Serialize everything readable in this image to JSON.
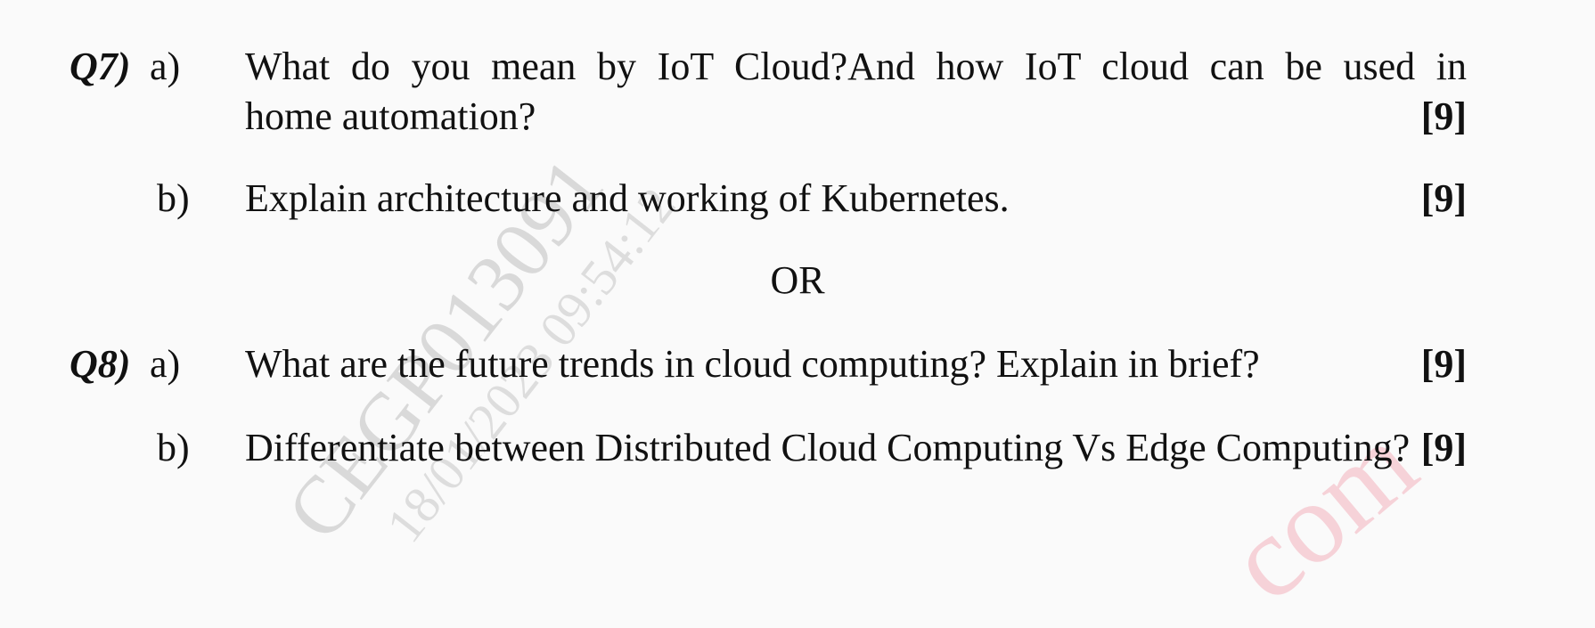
{
  "questions": [
    {
      "number": "Q7)",
      "parts": [
        {
          "letter": "a)",
          "text_lines": [
            "What do you mean by IoT Cloud?And how IoT cloud can be used in",
            "home automation?"
          ],
          "marks": "[9]"
        },
        {
          "letter": "b)",
          "text_lines": [
            "Explain architecture and working of Kubernetes."
          ],
          "marks": "[9]"
        }
      ]
    },
    {
      "number": "Q8)",
      "parts": [
        {
          "letter": "a)",
          "text_lines": [
            "What are the future trends in cloud computing? Explain in brief?"
          ],
          "marks": "[9]"
        },
        {
          "letter": "b)",
          "text_lines": [
            "Differentiate between Distributed Cloud Computing Vs Edge Computing?"
          ],
          "marks": "[9]"
        }
      ]
    }
  ],
  "separator": "OR",
  "watermarks": [
    "CEGP013091",
    "18/01/2023 09:54:12",
    "com"
  ]
}
